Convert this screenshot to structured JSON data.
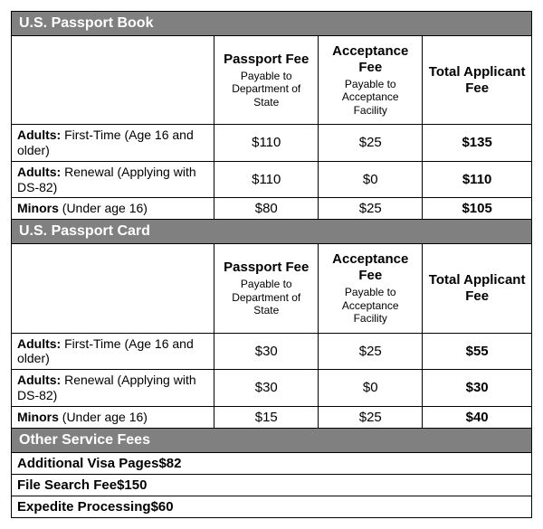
{
  "colors": {
    "header_bg": "#808080",
    "header_fg": "#ffffff",
    "border": "#000000",
    "text": "#000000",
    "background": "#ffffff"
  },
  "columns": {
    "passport_fee": {
      "title": "Passport Fee",
      "sub": "Payable to Department of State"
    },
    "acceptance_fee": {
      "title": "Acceptance Fee",
      "sub": "Payable to Acceptance Facility"
    },
    "total": {
      "title": "Total Applicant Fee"
    }
  },
  "sections": [
    {
      "title": "U.S. Passport Book",
      "rows": [
        {
          "lede": "Adults:",
          "rest": " First-Time (Age 16 and older)",
          "passport_fee": "$110",
          "acceptance_fee": "$25",
          "total": "$135"
        },
        {
          "lede": "Adults:",
          "rest": " Renewal (Applying with DS-82)",
          "passport_fee": "$110",
          "acceptance_fee": "$0",
          "total": "$110"
        },
        {
          "lede": "Minors",
          "rest": " (Under age 16)",
          "passport_fee": "$80",
          "acceptance_fee": "$25",
          "total": "$105"
        }
      ]
    },
    {
      "title": "U.S. Passport Card",
      "rows": [
        {
          "lede": "Adults:",
          "rest": " First-Time (Age 16 and older)",
          "passport_fee": "$30",
          "acceptance_fee": "$25",
          "total": "$55"
        },
        {
          "lede": "Adults:",
          "rest": " Renewal (Applying with DS-82)",
          "passport_fee": "$30",
          "acceptance_fee": "$0",
          "total": "$30"
        },
        {
          "lede": "Minors",
          "rest": " (Under age 16)",
          "passport_fee": "$15",
          "acceptance_fee": "$25",
          "total": "$40"
        }
      ]
    }
  ],
  "other": {
    "title": "Other Service Fees",
    "rows": [
      {
        "label": "Additional Visa Pages",
        "value": "$82"
      },
      {
        "label": "File Search Fee",
        "value": "$150"
      },
      {
        "label": "Expedite Processing",
        "value": "$60"
      }
    ]
  }
}
